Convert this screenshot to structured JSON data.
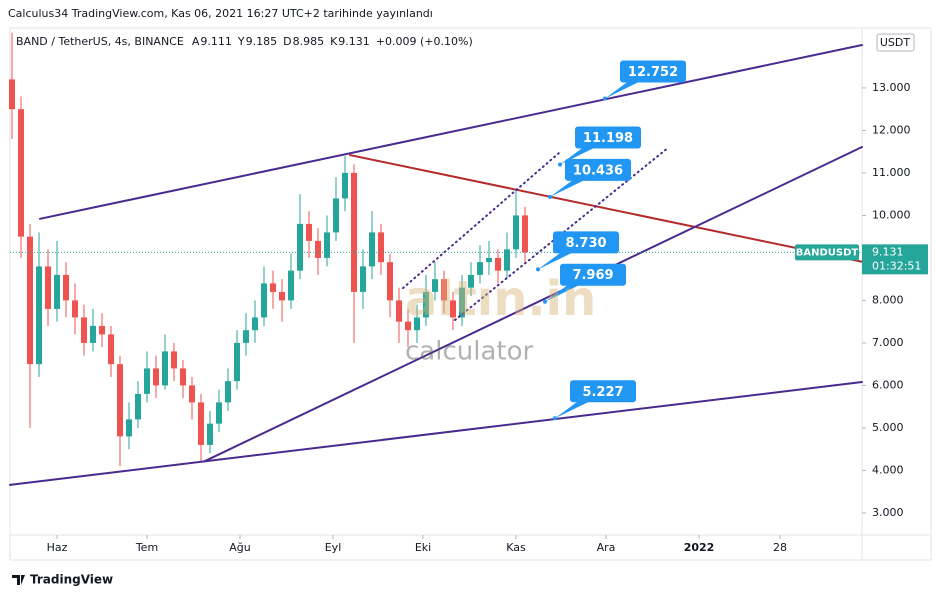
{
  "header": {
    "published": "Calculus34 TradingView.com, Kas 06, 2021 16:27 UTC+2 tarihinde yayınlandı",
    "symbol": "BAND / TetherUS, 4s, BINANCE",
    "ohlc": [
      {
        "key": "A",
        "value": "9.111"
      },
      {
        "key": "Y",
        "value": "9.185"
      },
      {
        "key": "D",
        "value": "8.985"
      },
      {
        "key": "K",
        "value": "9.131"
      }
    ],
    "change": "+0.009 (+0.10%)",
    "currency": "USDT"
  },
  "watermark": {
    "brand": "altın.in",
    "sub": "calculator"
  },
  "footer": "TradingView",
  "chart_data": {
    "type": "candlestick",
    "up_color": "#26a69a",
    "down_color": "#ef5350",
    "x": [
      -15,
      -12,
      -9,
      -6,
      -3,
      0,
      3,
      6,
      9,
      12,
      15,
      18,
      21,
      24,
      27,
      30,
      33,
      36,
      39,
      42,
      45,
      48,
      51,
      54,
      57,
      60,
      63,
      66,
      69,
      72,
      75,
      78,
      81,
      84,
      87,
      90,
      93,
      96,
      99,
      102,
      105,
      108,
      111,
      114,
      117,
      120,
      123,
      126,
      129,
      132,
      135,
      138,
      141,
      144,
      147,
      150,
      153,
      156
    ],
    "open": [
      13.2,
      12.5,
      9.5,
      6.5,
      8.8,
      7.8,
      8.6,
      8.0,
      7.6,
      7.0,
      7.4,
      7.2,
      6.5,
      4.8,
      5.2,
      5.8,
      6.4,
      6.0,
      6.8,
      6.4,
      6.0,
      5.6,
      4.6,
      5.1,
      5.6,
      6.1,
      7.0,
      7.3,
      7.6,
      8.4,
      8.2,
      8.0,
      8.7,
      9.8,
      9.4,
      9.0,
      9.6,
      10.4,
      11.0,
      8.2,
      8.8,
      9.6,
      8.9,
      8.0,
      7.5,
      7.3,
      7.6,
      8.2,
      8.5,
      8.0,
      7.6,
      8.3,
      8.6,
      8.9,
      9.0,
      8.7,
      9.2,
      10.0
    ],
    "high": [
      14.3,
      12.8,
      9.8,
      9.6,
      9.2,
      9.4,
      8.9,
      8.4,
      7.9,
      7.8,
      7.7,
      7.4,
      6.7,
      5.6,
      6.1,
      6.8,
      6.7,
      7.2,
      7.0,
      6.6,
      6.2,
      5.8,
      5.4,
      5.9,
      6.4,
      7.3,
      7.7,
      8.0,
      8.8,
      8.7,
      8.5,
      9.1,
      10.5,
      10.1,
      9.7,
      10.0,
      10.9,
      11.4,
      11.2,
      9.2,
      10.1,
      9.8,
      9.1,
      8.3,
      7.8,
      7.9,
      8.6,
      8.9,
      8.7,
      8.2,
      8.6,
      8.9,
      9.3,
      9.4,
      9.2,
      9.6,
      10.6,
      10.2
    ],
    "low": [
      11.8,
      9.0,
      5.0,
      6.2,
      7.4,
      7.5,
      7.6,
      7.2,
      6.7,
      6.8,
      6.9,
      6.2,
      4.1,
      4.5,
      5.0,
      5.6,
      5.7,
      5.9,
      6.1,
      5.7,
      5.2,
      4.2,
      4.4,
      4.9,
      5.4,
      5.9,
      6.7,
      7.0,
      7.4,
      7.8,
      7.5,
      7.8,
      8.5,
      9.0,
      8.6,
      8.8,
      9.4,
      10.1,
      7.0,
      7.8,
      8.5,
      8.6,
      7.6,
      7.0,
      6.9,
      7.0,
      7.4,
      8.0,
      7.7,
      7.3,
      7.4,
      8.1,
      8.4,
      8.6,
      8.4,
      8.5,
      9.0,
      8.9
    ],
    "close": [
      12.5,
      9.5,
      6.5,
      8.8,
      7.8,
      8.6,
      8.0,
      7.6,
      7.0,
      7.4,
      7.2,
      6.5,
      4.8,
      5.2,
      5.8,
      6.4,
      6.0,
      6.8,
      6.4,
      6.0,
      5.6,
      4.6,
      5.1,
      5.6,
      6.1,
      7.0,
      7.3,
      7.6,
      8.4,
      8.2,
      8.0,
      8.7,
      9.8,
      9.4,
      9.0,
      9.6,
      10.4,
      11.0,
      8.2,
      8.8,
      9.6,
      8.9,
      8.0,
      7.5,
      7.3,
      7.6,
      8.2,
      8.5,
      8.0,
      7.6,
      8.3,
      8.6,
      8.9,
      9.0,
      8.7,
      9.2,
      10.0,
      9.131
    ],
    "xlim": [
      -15.67,
      268.33
    ],
    "ylim": [
      2.48,
      14.41
    ],
    "xticks": [
      {
        "value": 0,
        "label": "Haz"
      },
      {
        "value": 30,
        "label": "Tem"
      },
      {
        "value": 61,
        "label": "Ağu"
      },
      {
        "value": 92,
        "label": "Eyl"
      },
      {
        "value": 122,
        "label": "Eki"
      },
      {
        "value": 153,
        "label": "Kas"
      },
      {
        "value": 183,
        "label": "Ara"
      },
      {
        "value": 214,
        "label": "2022"
      },
      {
        "value": 241,
        "label": "28"
      }
    ],
    "yticks": [
      {
        "value": 3,
        "label": "3.000"
      },
      {
        "value": 4,
        "label": "4.000"
      },
      {
        "value": 5,
        "label": "5.000"
      },
      {
        "value": 6,
        "label": "6.000"
      },
      {
        "value": 7,
        "label": "7.000"
      },
      {
        "value": 8,
        "label": "8.000"
      },
      {
        "value": 9,
        "label": "9.000"
      },
      {
        "value": 10,
        "label": "10.000"
      },
      {
        "value": 11,
        "label": "11.000"
      },
      {
        "value": 12,
        "label": "12.000"
      },
      {
        "value": 13,
        "label": "13.000"
      }
    ],
    "last_price": {
      "name": "BANDUSDT",
      "value": 9.131,
      "timer": "01:32:51",
      "color": "#26a69a"
    },
    "trendlines": [
      {
        "color": "#4a2a8f",
        "dashed": false,
        "x": [
          -5.67,
          268.33
        ],
        "y": [
          9.92,
          14.01
        ]
      },
      {
        "color": "#b22a2a",
        "dashed": false,
        "x": [
          97.67,
          268.33
        ],
        "y": [
          11.42,
          8.91
        ]
      },
      {
        "color": "#4a2a8f",
        "dashed": false,
        "x": [
          49.33,
          268.33
        ],
        "y": [
          4.22,
          11.61
        ]
      },
      {
        "color": "#4a2a8f",
        "dashed": false,
        "x": [
          -15.67,
          268.33
        ],
        "y": [
          3.66,
          6.08
        ]
      },
      {
        "color": "#4a2a8f",
        "dashed": true,
        "x": [
          115.33,
          167.67
        ],
        "y": [
          8.29,
          11.49
        ]
      },
      {
        "color": "#4a2a8f",
        "dashed": true,
        "x": [
          132.67,
          203.67
        ],
        "y": [
          7.54,
          11.59
        ]
      }
    ],
    "callouts": [
      {
        "value": 12.752,
        "label": "12.752",
        "x": 182.67
      },
      {
        "value": 11.198,
        "label": "11.198",
        "x": 167.67
      },
      {
        "value": 10.436,
        "label": "10.436",
        "x": 164.33
      },
      {
        "value": 8.73,
        "label": "8.730",
        "x": 160.33
      },
      {
        "value": 7.969,
        "label": "7.969",
        "x": 162.67
      },
      {
        "value": 5.227,
        "label": "5.227",
        "x": 166
      }
    ],
    "callout_color": "#2196f3"
  }
}
